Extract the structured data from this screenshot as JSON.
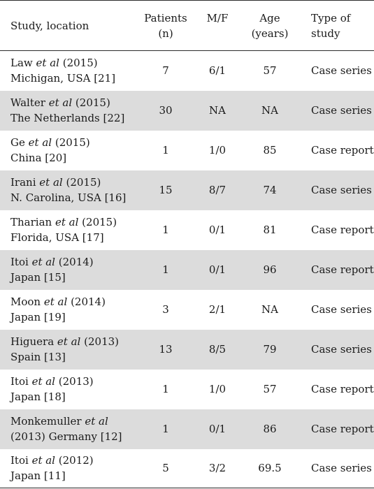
{
  "headers": {
    "study": "Study, location",
    "patients": [
      "Patients",
      "(n)"
    ],
    "mf": "M/F",
    "age": [
      "Age",
      "(years)"
    ],
    "type": [
      "Type of",
      "study"
    ]
  },
  "rows": [
    {
      "author": "Law",
      "etal": "et al",
      "year": "(2015)",
      "location": "Michigan, USA [21]",
      "patients": "7",
      "mf": "6/1",
      "age": "57",
      "type": "Case series"
    },
    {
      "author": "Walter",
      "etal": "et al",
      "year": "(2015)",
      "location": "The Netherlands [22]",
      "patients": "30",
      "mf": "NA",
      "age": "NA",
      "type": "Case series"
    },
    {
      "author": "Ge",
      "etal": "et al",
      "year": "(2015)",
      "location": "China [20]",
      "patients": "1",
      "mf": "1/0",
      "age": "85",
      "type": "Case report"
    },
    {
      "author": "Irani",
      "etal": "et al",
      "year": "(2015)",
      "location": "N. Carolina, USA [16]",
      "patients": "15",
      "mf": "8/7",
      "age": "74",
      "type": "Case series"
    },
    {
      "author": "Tharian",
      "etal": "et al",
      "year": "(2015)",
      "location": "Florida, USA [17]",
      "patients": "1",
      "mf": "0/1",
      "age": "81",
      "type": "Case report"
    },
    {
      "author": "Itoi",
      "etal": "et al",
      "year": "(2014)",
      "location": "Japan [15]",
      "patients": "1",
      "mf": "0/1",
      "age": "96",
      "type": "Case report"
    },
    {
      "author": "Moon",
      "etal": "et al",
      "year": "(2014)",
      "location": "Japan [19]",
      "patients": "3",
      "mf": "2/1",
      "age": "NA",
      "type": "Case series"
    },
    {
      "author": "Higuera",
      "etal": "et al",
      "year": "(2013)",
      "location": "Spain [13]",
      "patients": "13",
      "mf": "8/5",
      "age": "79",
      "type": "Case series"
    },
    {
      "author": "Itoi",
      "etal": "et al",
      "year": "(2013)",
      "location": "Japan [18]",
      "patients": "1",
      "mf": "1/0",
      "age": "57",
      "type": "Case report"
    },
    {
      "author": "Monkemuller",
      "etal": "et al",
      "year": "",
      "location": "(2013) Germany [12]",
      "patients": "1",
      "mf": "0/1",
      "age": "86",
      "type": "Case report"
    },
    {
      "author": "Itoi",
      "etal": "et al",
      "year": "(2012)",
      "location": "Japan [11]",
      "patients": "5",
      "mf": "3/2",
      "age": "69.5",
      "type": "Case series"
    }
  ]
}
